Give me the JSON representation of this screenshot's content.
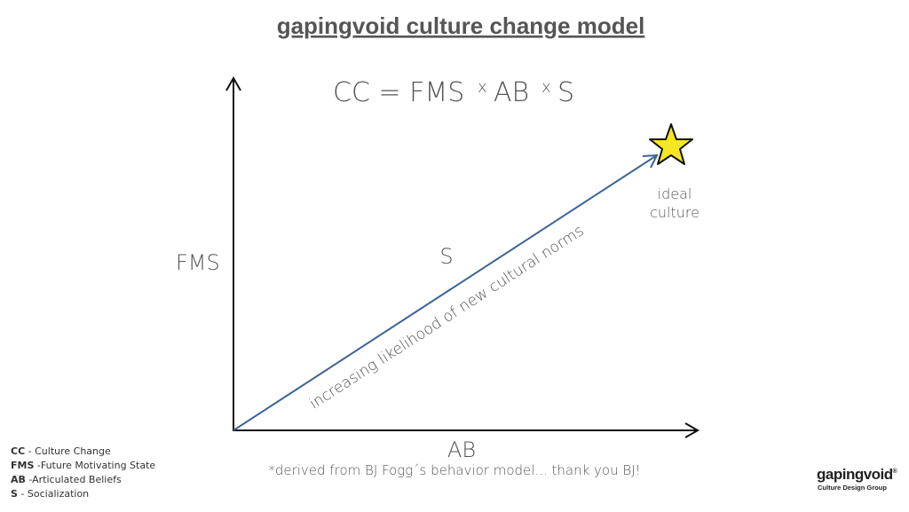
{
  "header": {
    "title": "gapingvoid culture change model"
  },
  "formula": {
    "parts": [
      "CC = FMS",
      "x",
      "AB",
      "x",
      "S"
    ]
  },
  "diagram": {
    "y_axis_label": "FMS",
    "x_axis_label": "AB",
    "center_label": "S",
    "arrow_label": "increasing likelihood of new cultural norms",
    "target_label": [
      "ideal",
      "culture"
    ]
  },
  "footnote": "*derived from BJ Fogg´s behavior model... thank you BJ!",
  "legend": [
    {
      "abbr": "CC",
      "text": " - Culture Change"
    },
    {
      "abbr": "FMS",
      "text": " -Future Motivating State"
    },
    {
      "abbr": "AB",
      "text": " -Articulated Beliefs"
    },
    {
      "abbr": "S",
      "text": " - Socialization"
    }
  ],
  "logo": {
    "name": "gapingvoid",
    "mark": "®",
    "tagline": "Culture Design Group"
  }
}
